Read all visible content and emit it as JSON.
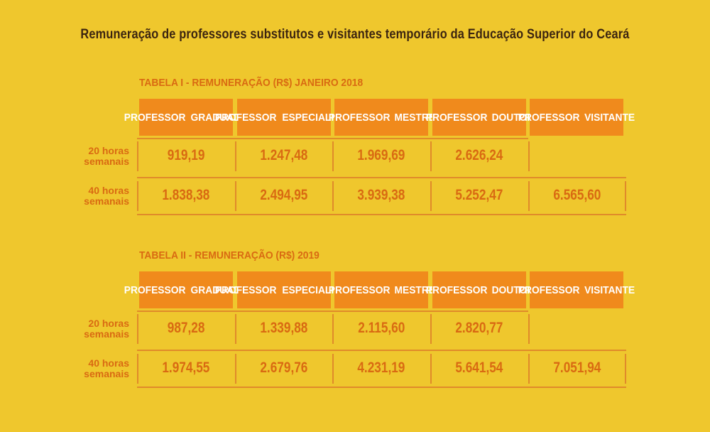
{
  "title": "Remuneração de professores substitutos e visitantes temporário da Educação Superior do Ceará",
  "tables": [
    {
      "title": "TABELA I - REMUNERAÇÃO (R$) JANEIRO 2018",
      "headers": [
        [
          "PROFESSOR",
          "GRADUADO"
        ],
        [
          "PROFESSOR",
          "ESPECIALISTA"
        ],
        [
          "PROFESSOR",
          "MESTRE"
        ],
        [
          "PROFESSOR",
          "DOUTOR"
        ],
        [
          "PROFESSOR",
          "VISITANTE"
        ]
      ],
      "rows": [
        {
          "label": [
            "20 horas",
            "semanais"
          ],
          "values": [
            "919,19",
            "1.247,48",
            "1.969,69",
            "2.626,24",
            ""
          ]
        },
        {
          "label": [
            "40 horas",
            "semanais"
          ],
          "values": [
            "1.838,38",
            "2.494,95",
            "3.939,38",
            "5.252,47",
            "6.565,60"
          ]
        }
      ]
    },
    {
      "title": "TABELA II - REMUNERAÇÃO (R$) 2019",
      "headers": [
        [
          "PROFESSOR",
          "GRADUADO"
        ],
        [
          "PROFESSOR",
          "ESPECIALISTA"
        ],
        [
          "PROFESSOR",
          "MESTRE"
        ],
        [
          "PROFESSOR",
          "DOUTOR"
        ],
        [
          "PROFESSOR",
          "VISITANTE"
        ]
      ],
      "rows": [
        {
          "label": [
            "20 horas",
            "semanais"
          ],
          "values": [
            "987,28",
            "1.339,88",
            "2.115,60",
            "2.820,77",
            ""
          ]
        },
        {
          "label": [
            "40 horas",
            "semanais"
          ],
          "values": [
            "1.974,55",
            "2.679,76",
            "4.231,19",
            "5.641,54",
            "7.051,94"
          ]
        }
      ]
    }
  ],
  "colors": {
    "background": "#efc72d",
    "header_fill": "#f08a1c",
    "header_text": "#ffffff",
    "value_text": "#d96a12",
    "title_text": "#3b2410",
    "lines": "#e08a2a"
  }
}
